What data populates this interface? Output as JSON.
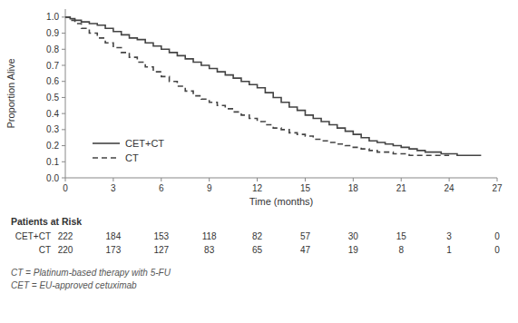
{
  "chart_data": {
    "type": "step",
    "xlabel": "Time (months)",
    "ylabel": "Proportion Alive",
    "xlim": [
      0,
      27
    ],
    "ylim": [
      0.0,
      1.05
    ],
    "xticks": [
      0,
      3,
      6,
      9,
      12,
      15,
      18,
      21,
      24,
      27
    ],
    "yticks": [
      {
        "value": 0,
        "label": "0.0"
      },
      0.1,
      0.2,
      0.3,
      0.4,
      0.5,
      0.6,
      0.7,
      0.8,
      0.9,
      {
        "value": 1,
        "label": "1.0"
      }
    ],
    "grid": false,
    "legend": "lower left",
    "series": [
      {
        "name": "CET+CT",
        "color": "#444444",
        "line_style": "solid",
        "x": [
          0,
          0.3,
          0.6,
          1.0,
          1.5,
          2.0,
          2.5,
          3.0,
          3.5,
          4.0,
          4.5,
          5.0,
          5.5,
          6.0,
          6.5,
          7.0,
          7.5,
          8.0,
          8.5,
          9.0,
          9.5,
          10.0,
          10.5,
          11.0,
          11.5,
          12.0,
          12.5,
          13.0,
          13.5,
          14.0,
          14.5,
          15.0,
          15.5,
          16.0,
          16.5,
          17.0,
          17.5,
          18.0,
          18.5,
          19.0,
          19.5,
          20.0,
          20.5,
          21.0,
          21.5,
          22.0,
          22.5,
          23.0,
          23.5,
          24.0,
          24.5,
          25.0,
          26.0
        ],
        "values": [
          1.0,
          0.99,
          0.98,
          0.97,
          0.96,
          0.95,
          0.93,
          0.91,
          0.89,
          0.87,
          0.86,
          0.84,
          0.82,
          0.8,
          0.78,
          0.76,
          0.74,
          0.72,
          0.7,
          0.68,
          0.66,
          0.64,
          0.62,
          0.6,
          0.58,
          0.56,
          0.53,
          0.5,
          0.47,
          0.44,
          0.42,
          0.39,
          0.37,
          0.35,
          0.33,
          0.31,
          0.29,
          0.27,
          0.25,
          0.23,
          0.22,
          0.21,
          0.2,
          0.19,
          0.18,
          0.17,
          0.16,
          0.16,
          0.15,
          0.15,
          0.14,
          0.14,
          0.14
        ]
      },
      {
        "name": "CT",
        "color": "#444444",
        "line_style": "dashed",
        "x": [
          0,
          0.3,
          0.6,
          1.0,
          1.5,
          2.0,
          2.5,
          3.0,
          3.5,
          4.0,
          4.5,
          5.0,
          5.5,
          6.0,
          6.5,
          7.0,
          7.5,
          8.0,
          8.5,
          9.0,
          9.5,
          10.0,
          10.5,
          11.0,
          11.5,
          12.0,
          12.5,
          13.0,
          13.5,
          14.0,
          14.5,
          15.0,
          15.5,
          16.0,
          16.5,
          17.0,
          17.5,
          18.0,
          18.5,
          19.0,
          19.5,
          20.0,
          20.5,
          21.0,
          21.5,
          22.0,
          22.5,
          23.0,
          23.5,
          24.0
        ],
        "values": [
          1.0,
          0.98,
          0.96,
          0.93,
          0.9,
          0.87,
          0.84,
          0.81,
          0.78,
          0.75,
          0.72,
          0.69,
          0.66,
          0.63,
          0.6,
          0.57,
          0.54,
          0.51,
          0.49,
          0.47,
          0.45,
          0.43,
          0.41,
          0.39,
          0.37,
          0.35,
          0.33,
          0.31,
          0.3,
          0.28,
          0.27,
          0.26,
          0.24,
          0.23,
          0.22,
          0.21,
          0.2,
          0.19,
          0.18,
          0.17,
          0.16,
          0.16,
          0.15,
          0.15,
          0.14,
          0.14,
          0.14,
          0.14,
          0.14,
          0.14
        ]
      }
    ],
    "risk_table": {
      "title": "Patients at Risk",
      "times": [
        0,
        3,
        6,
        9,
        12,
        15,
        18,
        21,
        24,
        27
      ],
      "rows": [
        {
          "name": "CET+CT",
          "values": [
            222,
            184,
            153,
            118,
            82,
            57,
            30,
            15,
            3,
            0
          ]
        },
        {
          "name": "CT",
          "values": [
            220,
            173,
            127,
            83,
            65,
            47,
            19,
            8,
            1,
            0
          ]
        }
      ]
    },
    "footnotes": [
      "CT = Platinum-based therapy with 5-FU",
      "CET = EU-approved cetuximab"
    ]
  }
}
